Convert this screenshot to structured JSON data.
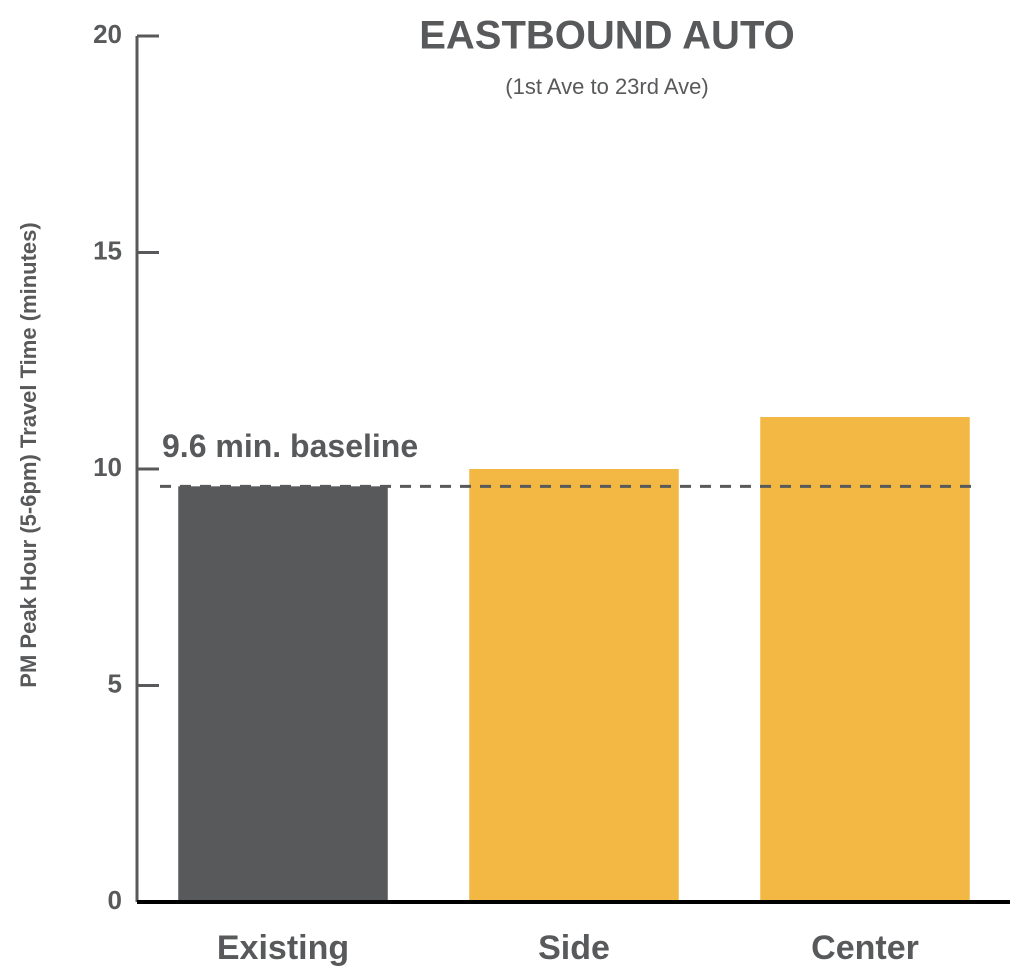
{
  "chart_data": {
    "type": "bar",
    "title": "EASTBOUND AUTO",
    "subtitle": "(1st Ave to 23rd Ave)",
    "y_label": "PM Peak Hour (5-6pm) Travel Time (minutes)",
    "categories": [
      "Existing",
      "Side",
      "Center"
    ],
    "values": [
      9.6,
      10.0,
      11.2
    ],
    "colors": [
      "#58595b",
      "#f2b843",
      "#f2b843"
    ],
    "ylim": [
      0,
      20
    ],
    "yticks": [
      0,
      5,
      10,
      15,
      20
    ],
    "reference_line": {
      "value": 9.6,
      "label": "9.6 min. baseline"
    }
  }
}
